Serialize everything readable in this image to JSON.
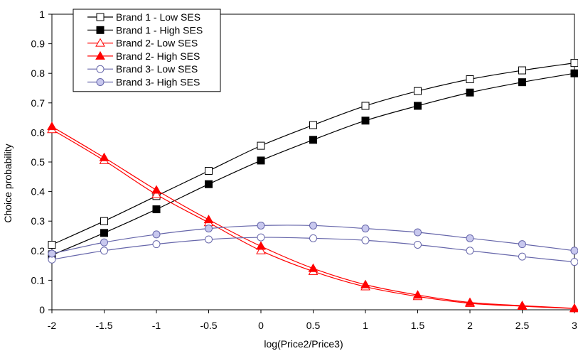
{
  "chart_data": {
    "type": "line",
    "title": "",
    "xlabel": "log(Price2/Price3)",
    "ylabel": "Choice probability",
    "xlim": [
      -2,
      3
    ],
    "ylim": [
      0,
      1
    ],
    "x_ticks": [
      "-2",
      "-1.5",
      "-1",
      "-0.5",
      "0",
      "0.5",
      "1",
      "1.5",
      "2",
      "2.5",
      "3"
    ],
    "y_ticks": [
      "0",
      "0.1",
      "0.2",
      "0.3",
      "0.4",
      "0.5",
      "0.6",
      "0.7",
      "0.8",
      "0.9",
      "1"
    ],
    "grid": false,
    "legend_position": "top-left",
    "x": [
      -2,
      -1.5,
      -1,
      -0.5,
      0,
      0.5,
      1,
      1.5,
      2,
      2.5,
      3
    ],
    "series": [
      {
        "name": "Brand 1 - Low SES",
        "color": "#000000",
        "marker": "square",
        "filled": false,
        "values": [
          0.22,
          0.3,
          0.385,
          0.47,
          0.555,
          0.625,
          0.69,
          0.74,
          0.78,
          0.81,
          0.835
        ]
      },
      {
        "name": "Brand 1 - High SES",
        "color": "#000000",
        "marker": "square",
        "filled": true,
        "values": [
          0.185,
          0.26,
          0.34,
          0.425,
          0.505,
          0.575,
          0.64,
          0.69,
          0.735,
          0.77,
          0.8
        ]
      },
      {
        "name": "Brand 2- Low SES",
        "color": "#ff0000",
        "marker": "triangle",
        "filled": false,
        "values": [
          0.61,
          0.505,
          0.39,
          0.295,
          0.2,
          0.13,
          0.078,
          0.045,
          0.022,
          0.012,
          0.004
        ]
      },
      {
        "name": "Brand 2- High SES",
        "color": "#ff0000",
        "marker": "triangle",
        "filled": true,
        "values": [
          0.62,
          0.515,
          0.405,
          0.305,
          0.215,
          0.14,
          0.085,
          0.05,
          0.025,
          0.014,
          0.005
        ]
      },
      {
        "name": "Brand 3- Low SES",
        "color": "#6666aa",
        "marker": "circle",
        "filled": false,
        "fill_color": "#ffffff",
        "values": [
          0.17,
          0.2,
          0.222,
          0.238,
          0.245,
          0.242,
          0.235,
          0.22,
          0.2,
          0.18,
          0.162
        ]
      },
      {
        "name": "Brand 3- High SES",
        "color": "#6666aa",
        "marker": "circle",
        "filled": true,
        "fill_color": "#c8c8ee",
        "values": [
          0.19,
          0.228,
          0.255,
          0.275,
          0.285,
          0.285,
          0.275,
          0.262,
          0.242,
          0.222,
          0.2
        ]
      }
    ]
  }
}
